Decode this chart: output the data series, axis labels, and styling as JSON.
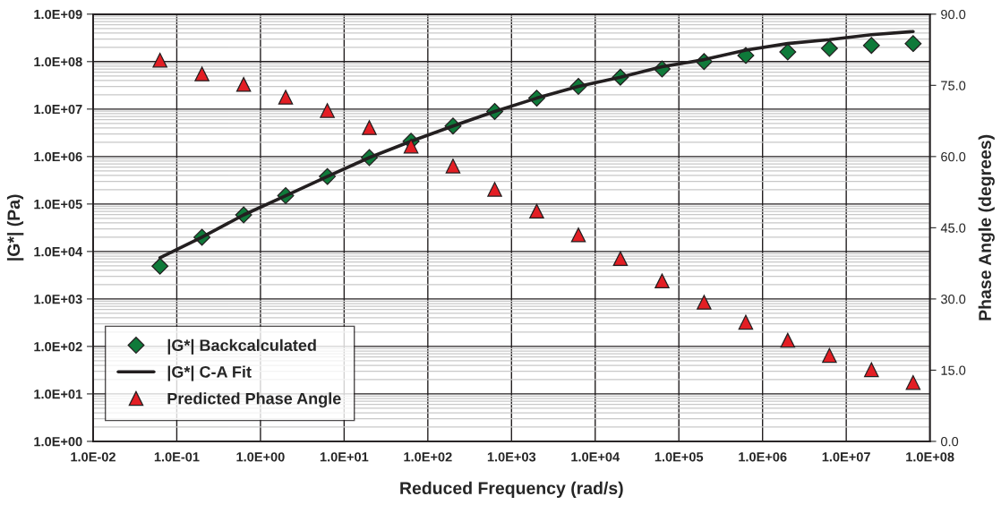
{
  "chart_data": {
    "type": "scatter",
    "xlabel": "Reduced Frequency (rad/s)",
    "ylabel": "|G*| (Pa)",
    "y2label": "Phase Angle (degrees)",
    "x": [
      0.063,
      0.2,
      0.63,
      2,
      6.3,
      20,
      63,
      200,
      630,
      2000,
      6300,
      20000,
      63000,
      200000,
      630000,
      2000000,
      6300000,
      20000000,
      63000000
    ],
    "series": [
      {
        "name": "|G*| Backcalculated",
        "marker": "diamond",
        "color": "#0f7a3a",
        "values": [
          4900,
          20000,
          59000,
          150000,
          380000,
          950000,
          2100000,
          4400000,
          8900000,
          17000000,
          30000000,
          47000000,
          70000000,
          100000000,
          135000000,
          160000000,
          190000000,
          220000000,
          240000000
        ]
      },
      {
        "name": "|G*| C-A Fit",
        "type": "line",
        "marker": "none",
        "line_style": "solid",
        "color": "#231f20",
        "values": [
          7400,
          20000,
          59000,
          150000,
          380000,
          950000,
          2100000,
          4400000,
          8900000,
          17000000,
          30000000,
          47000000,
          78000000,
          110000000,
          175000000,
          240000000,
          290000000,
          370000000,
          430000000
        ]
      },
      {
        "name": "Predicted Phase Angle",
        "marker": "triangle",
        "color": "#e31e24",
        "axis": "y2",
        "values": [
          80.3,
          77.4,
          75.2,
          72.5,
          69.7,
          66.1,
          62.2,
          58.0,
          53.1,
          48.5,
          43.5,
          38.5,
          33.8,
          29.3,
          25.1,
          21.3,
          18.1,
          15.1,
          12.4
        ]
      }
    ],
    "log": "xy",
    "xlim": [
      0.01,
      100000000
    ],
    "xticks": [
      {
        "value": 0.01,
        "label": "1.0E-02"
      },
      {
        "value": 0.1,
        "label": "1.0E-01"
      },
      {
        "value": 1,
        "label": "1.0E+00"
      },
      {
        "value": 10,
        "label": "1.0E+01"
      },
      {
        "value": 100,
        "label": "1.0E+02"
      },
      {
        "value": 1000,
        "label": "1.0E+03"
      },
      {
        "value": 10000,
        "label": "1.0E+04"
      },
      {
        "value": 100000,
        "label": "1.0E+05"
      },
      {
        "value": 1000000,
        "label": "1.0E+06"
      },
      {
        "value": 10000000,
        "label": "1.0E+07"
      },
      {
        "value": 100000000,
        "label": "1.0E+08"
      }
    ],
    "ylim": [
      1,
      1000000000
    ],
    "yticks": [
      {
        "value": 1,
        "label": "1.0E+00"
      },
      {
        "value": 10,
        "label": "1.0E+01"
      },
      {
        "value": 100,
        "label": "1.0E+02"
      },
      {
        "value": 1000,
        "label": "1.0E+03"
      },
      {
        "value": 10000,
        "label": "1.0E+04"
      },
      {
        "value": 100000,
        "label": "1.0E+05"
      },
      {
        "value": 1000000,
        "label": "1.0E+06"
      },
      {
        "value": 10000000,
        "label": "1.0E+07"
      },
      {
        "value": 100000000,
        "label": "1.0E+08"
      },
      {
        "value": 1000000000,
        "label": "1.0E+09"
      }
    ],
    "y2lim": [
      0,
      90
    ],
    "y2ticks": [
      {
        "value": 0,
        "label": "0.0"
      },
      {
        "value": 15,
        "label": "15.0"
      },
      {
        "value": 30,
        "label": "30.0"
      },
      {
        "value": 45,
        "label": "45.0"
      },
      {
        "value": 60,
        "label": "60.0"
      },
      {
        "value": 75,
        "label": "75.0"
      },
      {
        "value": 90,
        "label": "90.0"
      }
    ],
    "grid": true,
    "legend": "bottom left"
  }
}
